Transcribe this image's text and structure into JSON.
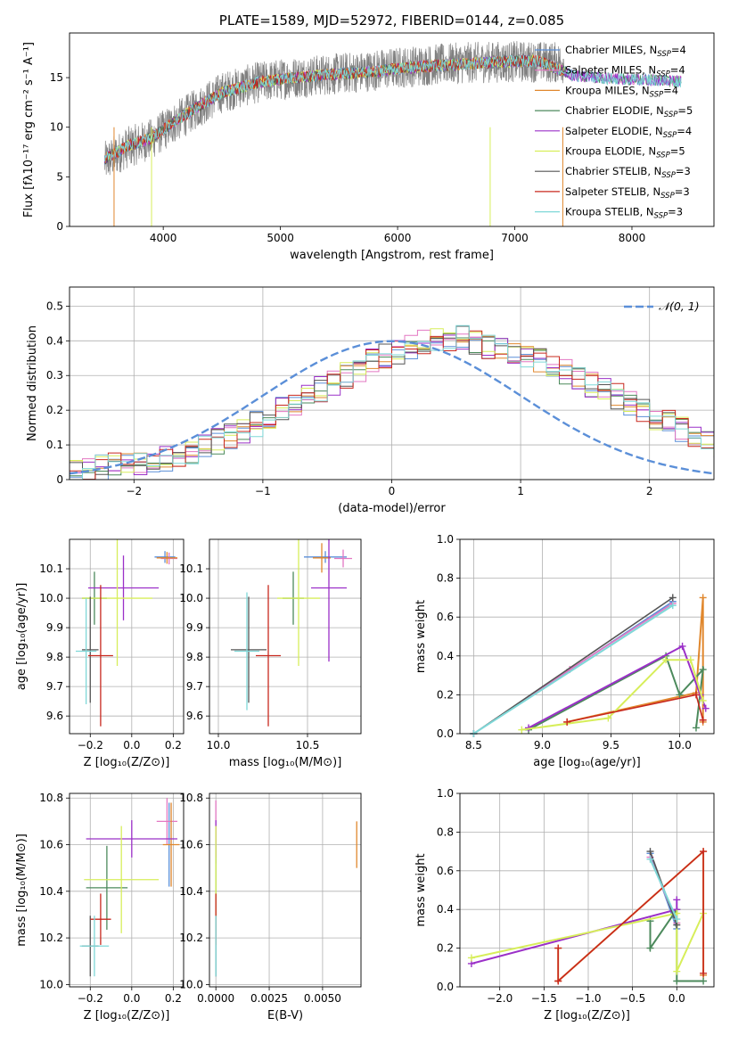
{
  "colors": {
    "Chabrier MILES": "#5b8fd8",
    "Salpeter MILES": "#e377c2",
    "Kroupa MILES": "#e0872d",
    "Chabrier ELODIE": "#4c8a5c",
    "Salpeter ELODIE": "#9b30c8",
    "Kroupa ELODIE": "#d7ee5a",
    "Chabrier STELIB": "#555555",
    "Salpeter STELIB": "#c8281e",
    "Kroupa STELIB": "#7fd8d8",
    "normal": "#5b8fd8",
    "grid": "#b0b0b0"
  },
  "chart_data": [
    {
      "type": "line",
      "title": "PLATE=1589, MJD=52972, FIBERID=0144, z=0.085",
      "xlabel": "wavelength [Angstrom, rest frame]",
      "ylabel": "Flux [fλ10⁻¹⁷ erg cm⁻² s⁻¹ A⁻¹]",
      "xlim": [
        3200,
        8700
      ],
      "ylim": [
        0,
        19.5
      ],
      "xticks": [
        4000,
        5000,
        6000,
        7000,
        8000
      ],
      "yticks": [
        0,
        5,
        10,
        15
      ],
      "grid": false,
      "legend_position": "right",
      "legend": [
        {
          "series": "Chabrier MILES",
          "label": "Chabrier MILES, N",
          "sub": "SSP",
          "tail": "=4"
        },
        {
          "series": "Salpeter MILES",
          "label": "Salpeter MILES, N",
          "sub": "SSP",
          "tail": "=4"
        },
        {
          "series": "Kroupa MILES",
          "label": "Kroupa MILES, N",
          "sub": "SSP",
          "tail": "=4"
        },
        {
          "series": "Chabrier ELODIE",
          "label": "Chabrier ELODIE, N",
          "sub": "SSP",
          "tail": "=5"
        },
        {
          "series": "Salpeter ELODIE",
          "label": "Salpeter ELODIE, N",
          "sub": "SSP",
          "tail": "=4"
        },
        {
          "series": "Kroupa ELODIE",
          "label": "Kroupa ELODIE, N",
          "sub": "SSP",
          "tail": "=5"
        },
        {
          "series": "Chabrier STELIB",
          "label": "Chabrier STELIB, N",
          "sub": "SSP",
          "tail": "=3"
        },
        {
          "series": "Salpeter STELIB",
          "label": "Salpeter STELIB, N",
          "sub": "SSP",
          "tail": "=3"
        },
        {
          "series": "Kroupa STELIB",
          "label": "Kroupa STELIB, N",
          "sub": "SSP",
          "tail": "=3"
        }
      ],
      "spectrum_continuum": {
        "wavelength": [
          3500,
          3700,
          3900,
          4100,
          4300,
          4500,
          4800,
          5100,
          5400,
          5700,
          6000,
          6300,
          6600,
          6900,
          7200,
          7400
        ],
        "flux": [
          6.5,
          8.0,
          8.8,
          10.5,
          12.0,
          13.5,
          14.5,
          15.0,
          15.3,
          15.6,
          16.0,
          16.3,
          16.5,
          16.6,
          16.6,
          16.5
        ]
      },
      "model_continuum": {
        "wavelength": [
          3500,
          3700,
          3900,
          4100,
          4300,
          4500,
          4800,
          5100,
          5400,
          5700,
          6000,
          6300,
          6600,
          6900,
          7200,
          7500,
          7800,
          8100,
          8400
        ],
        "flux": [
          6.8,
          8.1,
          8.9,
          10.6,
          12.1,
          13.5,
          14.5,
          15.0,
          15.3,
          15.5,
          15.9,
          16.2,
          16.4,
          16.6,
          16.7,
          15.2,
          14.9,
          14.8,
          14.6
        ]
      }
    },
    {
      "type": "bar",
      "subtype": "step-histogram",
      "xlabel": "(data-model)/error",
      "ylabel": "Normed distribution",
      "xlim": [
        -2.5,
        2.5
      ],
      "ylim": [
        0,
        0.555
      ],
      "xticks": [
        -2,
        -1,
        0,
        1,
        2
      ],
      "yticks": [
        0.0,
        0.1,
        0.2,
        0.3,
        0.4,
        0.5
      ],
      "grid": true,
      "bin_width": 0.1,
      "bins_start": -2.5,
      "legend": [
        "𝒩(0, 1)"
      ],
      "legend_position": "top-right",
      "histogram_base": [
        0.02,
        0.025,
        0.03,
        0.035,
        0.04,
        0.045,
        0.05,
        0.055,
        0.06,
        0.07,
        0.08,
        0.095,
        0.11,
        0.125,
        0.14,
        0.16,
        0.18,
        0.2,
        0.22,
        0.245,
        0.26,
        0.28,
        0.3,
        0.32,
        0.34,
        0.355,
        0.37,
        0.385,
        0.395,
        0.4,
        0.4,
        0.41,
        0.395,
        0.385,
        0.375,
        0.36,
        0.35,
        0.34,
        0.325,
        0.31,
        0.29,
        0.275,
        0.255,
        0.24,
        0.22,
        0.2,
        0.18,
        0.165,
        0.145,
        0.13,
        0.115,
        0.1,
        0.085,
        0.075,
        0.065,
        0.055,
        0.045,
        0.04,
        0.035,
        0.03,
        0.025,
        0.02
      ],
      "histogram_bins_start": -2.6
    },
    {
      "type": "scatter",
      "subtype": "errorbar",
      "xlabel": "Z [log₁₀(Z/Z⊙)]",
      "ylabel": "age  [log₁₀(age/yr)]",
      "xlim": [
        -0.3,
        0.25
      ],
      "ylim": [
        9.54,
        10.2
      ],
      "xticks": [
        "-0.2",
        "0.0",
        "0.2"
      ],
      "yticks": [
        "9.6",
        "9.7",
        "9.8",
        "9.9",
        "10.0",
        "10.1"
      ],
      "grid": true,
      "points": [
        {
          "series": "Chabrier MILES",
          "x": 0.16,
          "xerr": 0.05,
          "y": 10.14,
          "yerr": 0.02
        },
        {
          "series": "Salpeter MILES",
          "x": 0.18,
          "xerr": 0.04,
          "y": 10.135,
          "yerr": 0.02
        },
        {
          "series": "Kroupa MILES",
          "x": 0.17,
          "xerr": 0.05,
          "y": 10.137,
          "yerr": 0.02
        },
        {
          "series": "Chabrier ELODIE",
          "x": -0.18,
          "xerr": 0.06,
          "y": 10.0,
          "yerr": 0.09
        },
        {
          "series": "Salpeter ELODIE",
          "x": -0.04,
          "xerr": 0.17,
          "y": 10.035,
          "yerr": 0.11
        },
        {
          "series": "Kroupa ELODIE",
          "x": -0.07,
          "xerr": 0.17,
          "y": 10.0,
          "yerr": 0.23
        },
        {
          "series": "Chabrier STELIB",
          "x": -0.2,
          "xerr": 0.04,
          "y": 9.825,
          "yerr": 0.18
        },
        {
          "series": "Salpeter STELIB",
          "x": -0.15,
          "xerr": 0.06,
          "y": 9.805,
          "yerr": 0.24
        },
        {
          "series": "Kroupa STELIB",
          "x": -0.22,
          "xerr": 0.05,
          "y": 9.82,
          "yerr": 0.18
        }
      ]
    },
    {
      "type": "scatter",
      "subtype": "errorbar",
      "xlabel": "mass [log₁₀(M/M⊙)]",
      "ylabel": "",
      "xlim": [
        9.95,
        10.8
      ],
      "ylim": [
        9.54,
        10.2
      ],
      "xticks": [
        "10.0",
        "10.5"
      ],
      "yticks": [
        "9.6",
        "9.7",
        "9.8",
        "9.9",
        "10.0",
        "10.1"
      ],
      "grid": true,
      "points": [
        {
          "series": "Chabrier MILES",
          "x": 10.6,
          "xerr": 0.12,
          "y": 10.14,
          "yerr": 0.02
        },
        {
          "series": "Salpeter MILES",
          "x": 10.7,
          "xerr": 0.05,
          "y": 10.135,
          "yerr": 0.03
        },
        {
          "series": "Kroupa MILES",
          "x": 10.58,
          "xerr": 0.05,
          "y": 10.137,
          "yerr": 0.05
        },
        {
          "series": "Chabrier ELODIE",
          "x": 10.42,
          "xerr": 0.06,
          "y": 10.0,
          "yerr": 0.09
        },
        {
          "series": "Salpeter ELODIE",
          "x": 10.62,
          "xerr": 0.1,
          "y": 10.035,
          "yerr": 0.25
        },
        {
          "series": "Kroupa ELODIE",
          "x": 10.45,
          "xerr": 0.12,
          "y": 10.0,
          "yerr": 0.23
        },
        {
          "series": "Chabrier STELIB",
          "x": 10.17,
          "xerr": 0.1,
          "y": 9.825,
          "yerr": 0.18
        },
        {
          "series": "Salpeter STELIB",
          "x": 10.28,
          "xerr": 0.07,
          "y": 9.805,
          "yerr": 0.24
        },
        {
          "series": "Kroupa STELIB",
          "x": 10.16,
          "xerr": 0.07,
          "y": 9.82,
          "yerr": 0.2
        }
      ]
    },
    {
      "type": "line",
      "xlabel": "age  [log₁₀(age/yr)]",
      "ylabel": "mass weight",
      "xlim": [
        8.4,
        10.25
      ],
      "ylim": [
        0,
        1.0
      ],
      "xticks": [
        "8.5",
        "9.0",
        "9.5",
        "10.0"
      ],
      "yticks": [
        "0.0",
        "0.2",
        "0.4",
        "0.6",
        "0.8",
        "1.0"
      ],
      "grid": true,
      "series": [
        {
          "name": "Chabrier MILES",
          "x": [
            8.5,
            9.95
          ],
          "y": [
            0.0,
            0.68
          ]
        },
        {
          "name": "Salpeter MILES",
          "x": [
            8.5,
            9.2,
            9.95
          ],
          "y": [
            0.0,
            0.33,
            0.67
          ]
        },
        {
          "name": "Kroupa MILES",
          "x": [
            9.18,
            10.12,
            10.17,
            10.17
          ],
          "y": [
            0.06,
            0.21,
            0.7,
            0.06
          ]
        },
        {
          "name": "Chabrier ELODIE",
          "x": [
            8.9,
            9.9,
            10.0,
            10.17,
            10.12
          ],
          "y": [
            0.02,
            0.4,
            0.2,
            0.33,
            0.03
          ]
        },
        {
          "name": "Salpeter ELODIE",
          "x": [
            8.9,
            10.02,
            10.15,
            10.19
          ],
          "y": [
            0.03,
            0.45,
            0.2,
            0.13
          ]
        },
        {
          "name": "Kroupa ELODIE",
          "x": [
            8.85,
            9.48,
            9.9,
            10.08,
            10.17
          ],
          "y": [
            0.02,
            0.08,
            0.38,
            0.38,
            0.17
          ]
        },
        {
          "name": "Chabrier STELIB",
          "x": [
            8.5,
            9.95
          ],
          "y": [
            0.0,
            0.7
          ]
        },
        {
          "name": "Salpeter STELIB",
          "x": [
            9.18,
            10.12,
            10.17
          ],
          "y": [
            0.06,
            0.2,
            0.07
          ]
        },
        {
          "name": "Kroupa STELIB",
          "x": [
            8.5,
            9.95
          ],
          "y": [
            0.0,
            0.66
          ]
        }
      ]
    },
    {
      "type": "scatter",
      "subtype": "errorbar",
      "xlabel": "Z [log₁₀(Z/Z⊙)]",
      "ylabel": "mass [log₁₀(M/M⊙)]",
      "xlim": [
        -0.3,
        0.25
      ],
      "ylim": [
        9.99,
        10.82
      ],
      "xticks": [
        "-0.2",
        "0.0",
        "0.2"
      ],
      "yticks": [
        "10.0",
        "10.2",
        "10.4",
        "10.6",
        "10.8"
      ],
      "grid": true,
      "points": [
        {
          "series": "Chabrier MILES",
          "x": 0.18,
          "xerr": 0.0,
          "y": 10.6,
          "yerr": 0.18
        },
        {
          "series": "Salpeter MILES",
          "x": 0.17,
          "xerr": 0.05,
          "y": 10.7,
          "yerr": 0.1
        },
        {
          "series": "Kroupa MILES",
          "x": 0.19,
          "xerr": 0.04,
          "y": 10.6,
          "yerr": 0.18
        },
        {
          "series": "Chabrier ELODIE",
          "x": -0.12,
          "xerr": 0.1,
          "y": 10.415,
          "yerr": 0.18
        },
        {
          "series": "Salpeter ELODIE",
          "x": 0.0,
          "xerr": 0.22,
          "y": 10.625,
          "yerr": 0.08
        },
        {
          "series": "Kroupa ELODIE",
          "x": -0.05,
          "xerr": 0.18,
          "y": 10.45,
          "yerr": 0.23
        },
        {
          "series": "Chabrier STELIB",
          "x": -0.2,
          "xerr": 0.04,
          "y": 10.165,
          "yerr": 0.13
        },
        {
          "series": "Salpeter STELIB",
          "x": -0.15,
          "xerr": 0.05,
          "y": 10.28,
          "yerr": 0.11
        },
        {
          "series": "Kroupa STELIB",
          "x": -0.18,
          "xerr": 0.07,
          "y": 10.165,
          "yerr": 0.13
        }
      ]
    },
    {
      "type": "scatter",
      "subtype": "errorbar",
      "xlabel": "E(B-V)",
      "ylabel": "",
      "xlim": [
        -0.0003,
        0.0068
      ],
      "ylim": [
        9.99,
        10.82
      ],
      "xticks": [
        "0.0000",
        "0.0025",
        "0.0050"
      ],
      "yticks": [
        "10.0",
        "10.2",
        "10.4",
        "10.6",
        "10.8"
      ],
      "grid": true,
      "points": [
        {
          "series": "Chabrier MILES",
          "x": 0.0,
          "xerr": 0,
          "y": 10.6,
          "yerr": 0.08
        },
        {
          "series": "Salpeter MILES",
          "x": 0.0,
          "xerr": 0,
          "y": 10.7,
          "yerr": 0.09
        },
        {
          "series": "Kroupa MILES",
          "x": 0.0066,
          "xerr": 0,
          "y": 10.6,
          "yerr": 0.1
        },
        {
          "series": "Chabrier ELODIE",
          "x": 0.0,
          "xerr": 0,
          "y": 10.415,
          "yerr": 0.18
        },
        {
          "series": "Salpeter ELODIE",
          "x": 0.0,
          "xerr": 0,
          "y": 10.625,
          "yerr": 0.08
        },
        {
          "series": "Kroupa ELODIE",
          "x": 0.0,
          "xerr": 0,
          "y": 10.45,
          "yerr": 0.23
        },
        {
          "series": "Chabrier STELIB",
          "x": 0.0,
          "xerr": 0,
          "y": 10.165,
          "yerr": 0.13
        },
        {
          "series": "Salpeter STELIB",
          "x": 0.0,
          "xerr": 0,
          "y": 10.28,
          "yerr": 0.11
        },
        {
          "series": "Kroupa STELIB",
          "x": 0.0,
          "xerr": 0,
          "y": 10.165,
          "yerr": 0.13
        }
      ]
    },
    {
      "type": "line",
      "xlabel": "Z [log₁₀(Z/Z⊙)]",
      "ylabel": "mass weight",
      "xlim": [
        -2.45,
        0.42
      ],
      "ylim": [
        0,
        1.0
      ],
      "xticks": [
        "-2.0",
        "-1.5",
        "-1.0",
        "-0.5",
        "0.0"
      ],
      "yticks": [
        "0.0",
        "0.2",
        "0.4",
        "0.6",
        "0.8",
        "1.0"
      ],
      "grid": true,
      "series": [
        {
          "name": "Chabrier MILES",
          "x": [
            -0.3,
            0.0
          ],
          "y": [
            0.69,
            0.3
          ]
        },
        {
          "name": "Salpeter MILES",
          "x": [
            -0.3,
            0.0
          ],
          "y": [
            0.67,
            0.33
          ]
        },
        {
          "name": "Kroupa MILES",
          "x": [
            -1.34,
            -1.34,
            0.3,
            0.3
          ],
          "y": [
            0.2,
            0.03,
            0.7,
            0.06
          ]
        },
        {
          "name": "Chabrier ELODIE",
          "x": [
            -0.3,
            -0.3,
            0.0,
            0.0,
            0.3
          ],
          "y": [
            0.34,
            0.2,
            0.4,
            0.03,
            0.03
          ]
        },
        {
          "name": "Salpeter ELODIE",
          "x": [
            -2.32,
            0.0,
            0.0
          ],
          "y": [
            0.12,
            0.4,
            0.45
          ]
        },
        {
          "name": "Kroupa ELODIE",
          "x": [
            -2.32,
            0.0,
            0.0,
            0.3
          ],
          "y": [
            0.15,
            0.38,
            0.08,
            0.38
          ]
        },
        {
          "name": "Chabrier STELIB",
          "x": [
            -0.3,
            0.0
          ],
          "y": [
            0.7,
            0.32
          ]
        },
        {
          "name": "Salpeter STELIB",
          "x": [
            -1.34,
            -1.34,
            0.3,
            0.3
          ],
          "y": [
            0.2,
            0.03,
            0.7,
            0.07
          ]
        },
        {
          "name": "Kroupa STELIB",
          "x": [
            -0.3,
            0.0
          ],
          "y": [
            0.66,
            0.35
          ]
        }
      ]
    }
  ]
}
